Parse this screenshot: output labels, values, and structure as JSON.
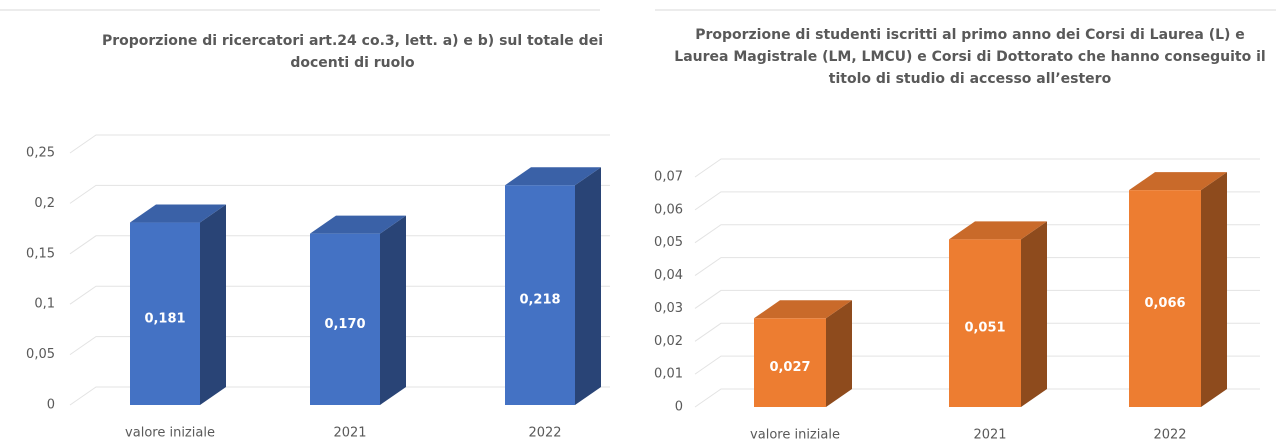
{
  "chart_data": [
    {
      "type": "bar3d",
      "title": "Proporzione di ricercatori art.24 co.3, lett. a) e b) sul totale dei docenti di ruolo",
      "categories": [
        "valore iniziale",
        "2021",
        "2022"
      ],
      "values": [
        0.181,
        0.17,
        0.218
      ],
      "value_labels": [
        "0,181",
        "0,170",
        "0,218"
      ],
      "color": "#4472c4",
      "ylim": [
        0,
        0.25
      ],
      "yticks": [
        0,
        {
          "value": 0.05,
          "label": "0,05"
        },
        {
          "value": 0.1,
          "label": "0,1"
        },
        {
          "value": 0.15,
          "label": "0,15"
        },
        {
          "value": 0.2,
          "label": "0,2"
        },
        {
          "value": 0.25,
          "label": "0,25"
        }
      ],
      "grid": true
    },
    {
      "type": "bar3d",
      "title": "Proporzione di studenti iscritti al primo anno dei Corsi di Laurea (L) e Laurea Magistrale (LM, LMCU) e Corsi di Dottorato che hanno conseguito il titolo di studio di accesso all’estero",
      "categories": [
        "valore iniziale",
        "2021",
        "2022"
      ],
      "values": [
        0.027,
        0.051,
        0.066
      ],
      "value_labels": [
        "0,027",
        "0,051",
        "0,066"
      ],
      "color": "#ed7d31",
      "ylim": [
        0,
        0.07
      ],
      "yticks": [
        0,
        {
          "value": 0.01,
          "label": "0,01"
        },
        {
          "value": 0.02,
          "label": "0,02"
        },
        {
          "value": 0.03,
          "label": "0,03"
        },
        {
          "value": 0.04,
          "label": "0,04"
        },
        {
          "value": 0.05,
          "label": "0,05"
        },
        {
          "value": 0.06,
          "label": "0,06"
        },
        {
          "value": 0.07,
          "label": "0,07"
        }
      ],
      "grid": true
    }
  ]
}
